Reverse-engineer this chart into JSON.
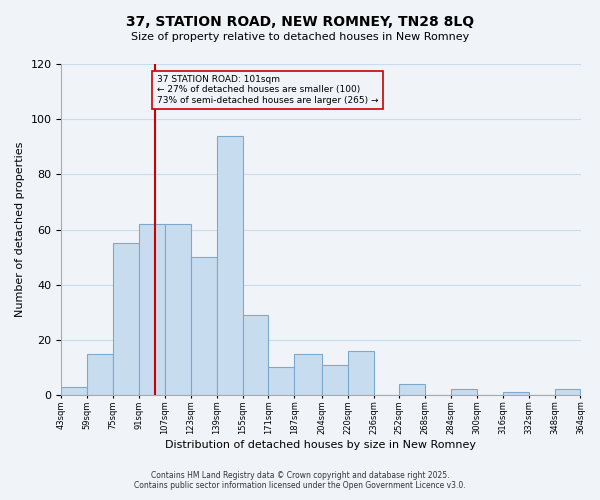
{
  "title": "37, STATION ROAD, NEW ROMNEY, TN28 8LQ",
  "subtitle": "Size of property relative to detached houses in New Romney",
  "xlabel": "Distribution of detached houses by size in New Romney",
  "ylabel": "Number of detached properties",
  "bar_color": "#c8dcf0",
  "bar_edge_color": "#7aaad0",
  "grid_color": "#c8dcf0",
  "vline_x": 101,
  "vline_color": "#cc0000",
  "annotation_title": "37 STATION ROAD: 101sqm",
  "annotation_line1": "← 27% of detached houses are smaller (100)",
  "annotation_line2": "73% of semi-detached houses are larger (265) →",
  "bin_edges": [
    43,
    59,
    75,
    91,
    107,
    123,
    139,
    155,
    171,
    187,
    204,
    220,
    236,
    252,
    268,
    284,
    300,
    316,
    332,
    348,
    364
  ],
  "bin_labels": [
    "43sqm",
    "59sqm",
    "75sqm",
    "91sqm",
    "107sqm",
    "123sqm",
    "139sqm",
    "155sqm",
    "171sqm",
    "187sqm",
    "204sqm",
    "220sqm",
    "236sqm",
    "252sqm",
    "268sqm",
    "284sqm",
    "300sqm",
    "316sqm",
    "332sqm",
    "348sqm",
    "364sqm"
  ],
  "bar_heights": [
    3,
    15,
    55,
    62,
    62,
    50,
    94,
    29,
    10,
    15,
    11,
    16,
    0,
    4,
    0,
    2,
    0,
    1,
    0,
    2
  ],
  "ylim": [
    0,
    120
  ],
  "yticks": [
    0,
    20,
    40,
    60,
    80,
    100,
    120
  ],
  "footnote1": "Contains HM Land Registry data © Crown copyright and database right 2025.",
  "footnote2": "Contains public sector information licensed under the Open Government Licence v3.0.",
  "bg_color": "#f0f4f8"
}
